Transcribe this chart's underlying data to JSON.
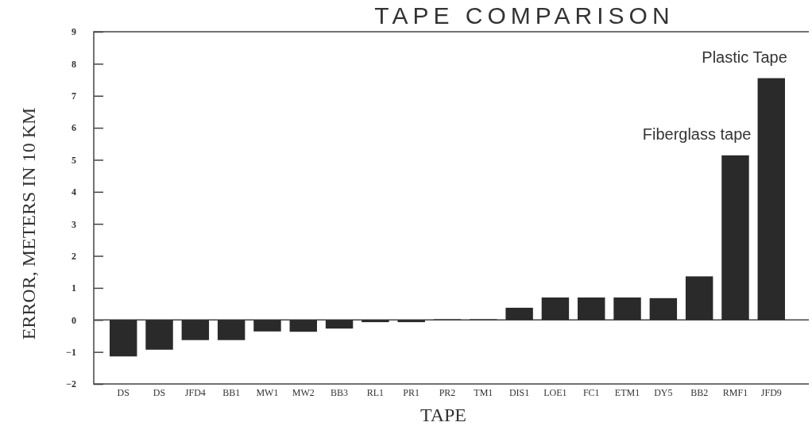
{
  "chart_data": {
    "type": "bar",
    "title": "TAPE COMPARISON",
    "xlabel": "TAPE",
    "ylabel": "ERROR, METERS IN 10 KM",
    "categories": [
      "DS",
      "DS",
      "JFD4",
      "BB1",
      "MW1",
      "MW2",
      "BB3",
      "RL1",
      "PR1",
      "PR2",
      "TM1",
      "DIS1",
      "LOE1",
      "FC1",
      "ETM1",
      "DY5",
      "BB2",
      "RMF1",
      "JFD9"
    ],
    "values": [
      -1.14,
      -0.93,
      -0.63,
      -0.63,
      -0.36,
      -0.37,
      -0.27,
      -0.07,
      -0.07,
      0.02,
      0.02,
      0.38,
      0.7,
      0.7,
      0.7,
      0.68,
      1.36,
      5.14,
      7.55
    ],
    "color": "#2a2a2a",
    "ylim": [
      -2,
      9
    ],
    "yticks": [
      -2,
      -1,
      0,
      1,
      2,
      3,
      4,
      5,
      6,
      7,
      8,
      9
    ],
    "annotations": [
      {
        "text": "Fiberglass tape",
        "x": "RMF1",
        "y": 5.14
      },
      {
        "text": "Plastic Tape",
        "x": "JFD9",
        "y": 7.55
      }
    ]
  }
}
